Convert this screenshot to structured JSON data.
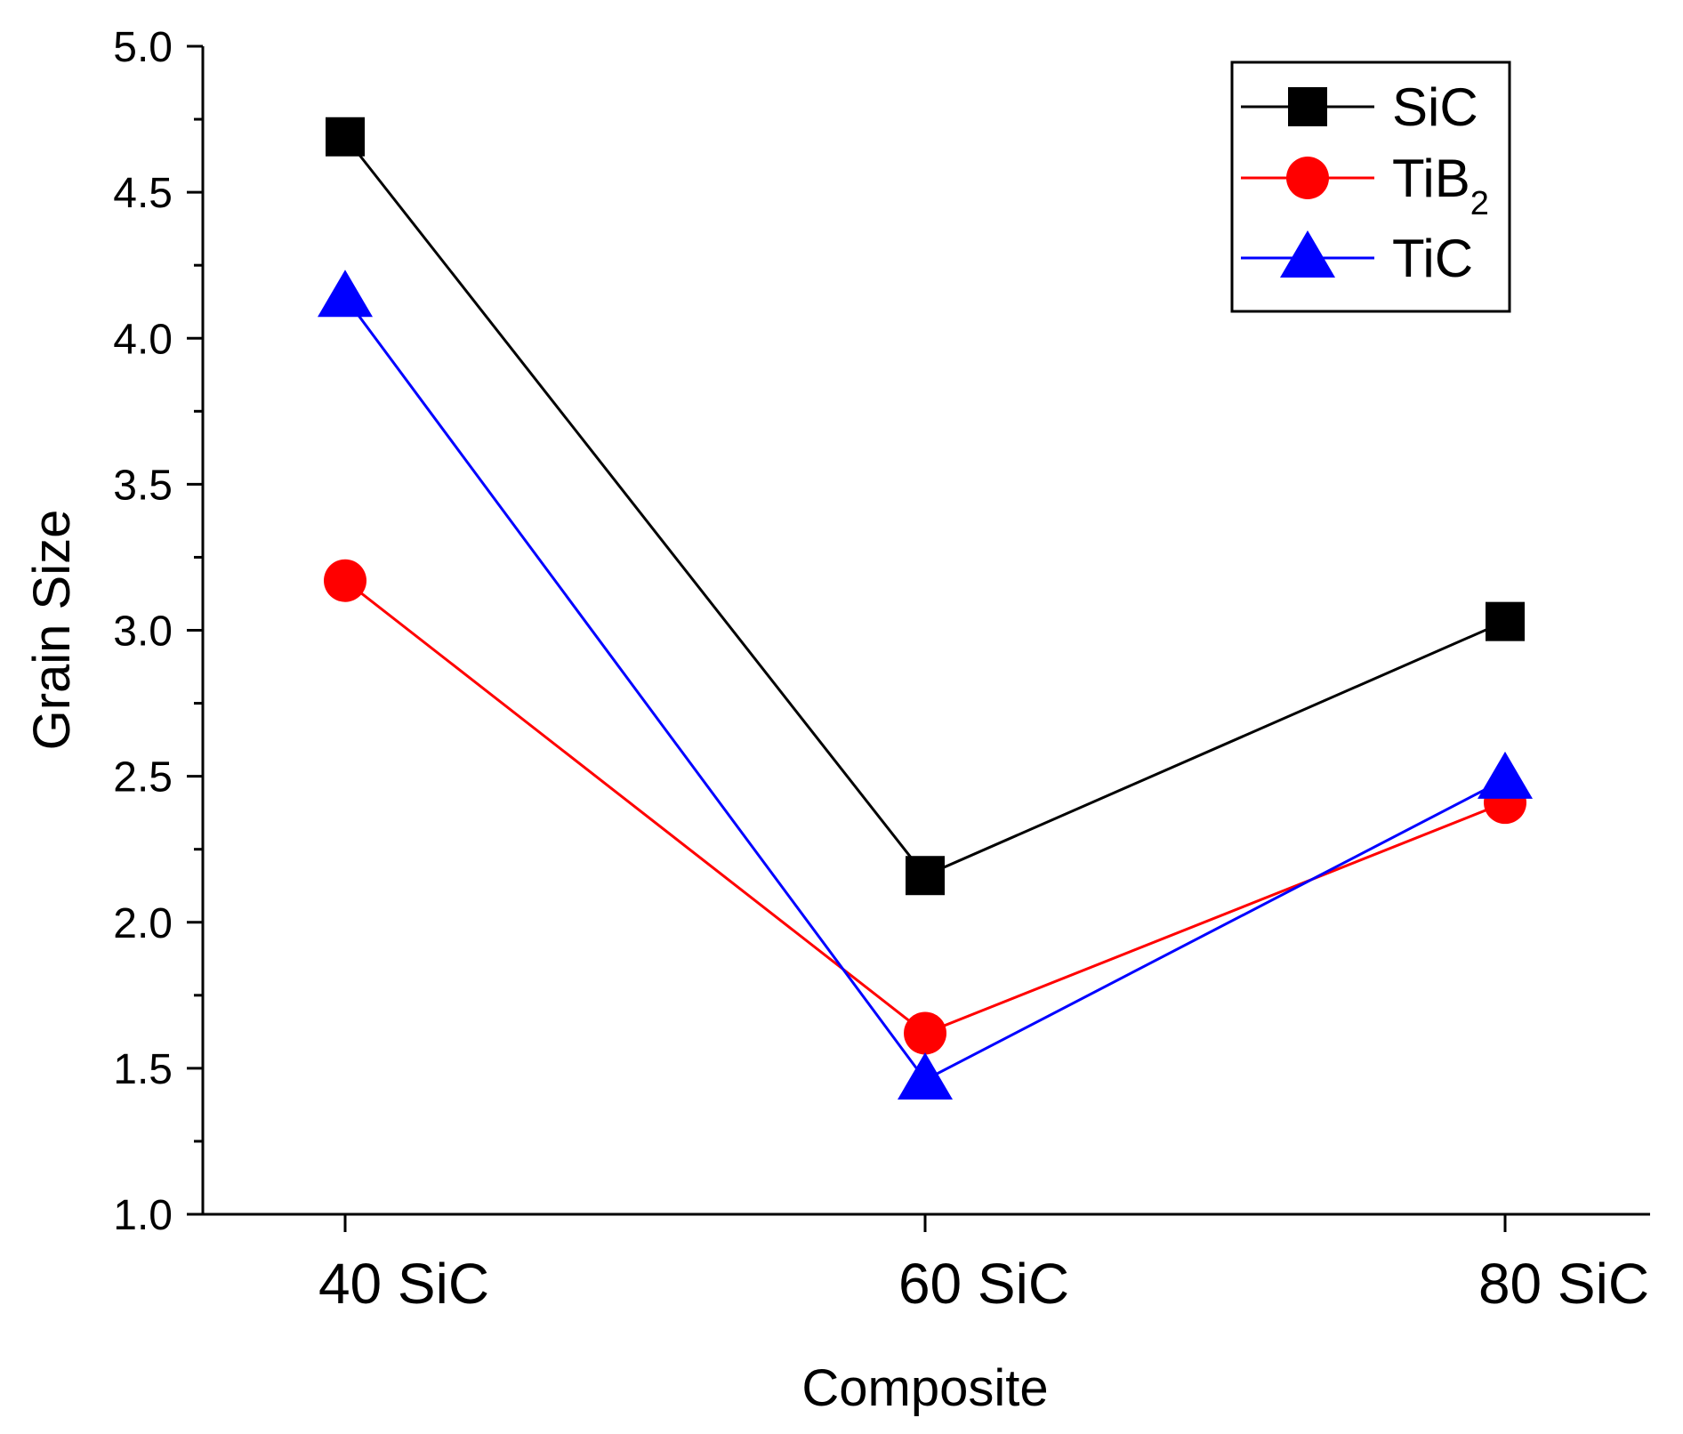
{
  "chart_data": {
    "type": "line",
    "title": "",
    "xlabel": "Composite",
    "ylabel": "Grain Size",
    "categories": [
      "40 SiC",
      "60 SiC",
      "80 SiC"
    ],
    "ylim": [
      1.0,
      5.0
    ],
    "yticks": [
      "1.0",
      "1.5",
      "2.0",
      "2.5",
      "3.0",
      "3.5",
      "4.0",
      "4.5",
      "5.0"
    ],
    "grid": false,
    "legend_position": "top-right",
    "series": [
      {
        "name": "SiC",
        "name_base": "SiC",
        "name_sub": "",
        "color": "#000000",
        "marker": "square",
        "values": [
          4.69,
          2.16,
          3.03
        ]
      },
      {
        "name": "TiB2",
        "name_base": "TiB",
        "name_sub": "2",
        "color": "#ff0000",
        "marker": "circle",
        "values": [
          3.17,
          1.62,
          2.41
        ]
      },
      {
        "name": "TiC",
        "name_base": "TiC",
        "name_sub": "",
        "color": "#0000ff",
        "marker": "triangle",
        "values": [
          4.14,
          1.46,
          2.49
        ]
      }
    ]
  }
}
